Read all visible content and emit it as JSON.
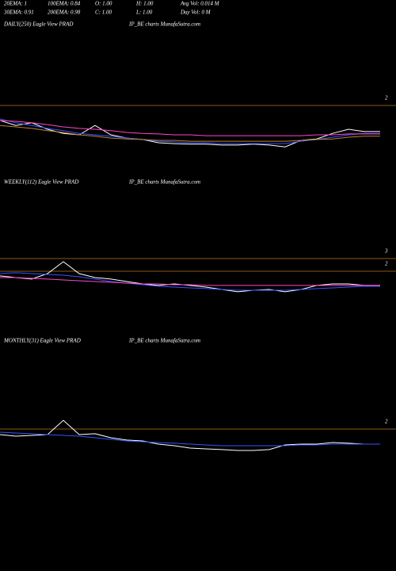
{
  "header": {
    "rows": [
      [
        "20EMA: 1",
        "100EMA: 0.84",
        "O: 1.00",
        "H: 1.00",
        "Avg Vol: 0.014  M"
      ],
      [
        "30EMA: 0.91",
        "200EMA: 0.98",
        "C: 1.00",
        "L: 1.00",
        "Day Vol: 0  M"
      ]
    ]
  },
  "chart_data": [
    {
      "type": "line",
      "label": "DAILY(250) Eagle   View  PRAD",
      "watermark": "IP_BE charts MunafaSutra.com",
      "ylim": [
        0,
        3
      ],
      "yticks": [
        2
      ],
      "level_color": "#b8741a",
      "series": [
        {
          "color": "#ffffff",
          "values": [
            1.49,
            1.32,
            1.41,
            1.19,
            1.05,
            1.0,
            1.32,
            1.0,
            0.89,
            0.84,
            0.73,
            0.7,
            0.68,
            0.68,
            0.65,
            0.65,
            0.68,
            0.65,
            0.59,
            0.81,
            0.86,
            1.05,
            1.19,
            1.11,
            1.11
          ]
        },
        {
          "color": "#3355ff",
          "values": [
            1.54,
            1.41,
            1.32,
            1.22,
            1.14,
            1.05,
            1.0,
            0.95,
            0.89,
            0.84,
            0.78,
            0.76,
            0.73,
            0.73,
            0.7,
            0.7,
            0.7,
            0.7,
            0.7,
            0.78,
            0.84,
            0.92,
            1.0,
            1.05,
            1.05
          ]
        },
        {
          "color": "#ff44cc",
          "values": [
            1.49,
            1.46,
            1.41,
            1.35,
            1.27,
            1.22,
            1.19,
            1.14,
            1.08,
            1.05,
            1.03,
            1.0,
            1.0,
            0.97,
            0.97,
            0.97,
            0.97,
            0.97,
            0.97,
            0.97,
            1.0,
            1.0,
            1.03,
            1.03,
            1.03
          ]
        },
        {
          "color": "#c08030",
          "values": [
            1.32,
            1.27,
            1.22,
            1.14,
            1.08,
            1.0,
            0.95,
            0.89,
            0.86,
            0.84,
            0.81,
            0.81,
            0.78,
            0.78,
            0.78,
            0.78,
            0.78,
            0.78,
            0.78,
            0.81,
            0.84,
            0.86,
            0.92,
            0.95,
            0.95
          ]
        }
      ]
    },
    {
      "type": "line",
      "label": "WEEKLY(112) Eagle   View  PRAD",
      "watermark": "IP_BE charts MunafaSutra.com",
      "ylim": [
        0,
        3
      ],
      "yticks": [
        3,
        2
      ],
      "level_color": "#b8741a",
      "series": [
        {
          "color": "#ffffff",
          "values": [
            1.63,
            1.5,
            1.38,
            1.81,
            2.75,
            1.81,
            1.5,
            1.38,
            1.19,
            1.0,
            0.88,
            1.0,
            0.88,
            0.75,
            0.56,
            0.38,
            0.5,
            0.56,
            0.38,
            0.56,
            0.88,
            1.0,
            1.0,
            0.88,
            0.88
          ]
        },
        {
          "color": "#3355ff",
          "values": [
            1.81,
            1.88,
            1.81,
            1.75,
            1.69,
            1.56,
            1.38,
            1.19,
            1.06,
            0.94,
            0.81,
            0.75,
            0.69,
            0.63,
            0.56,
            0.5,
            0.5,
            0.5,
            0.5,
            0.56,
            0.63,
            0.69,
            0.75,
            0.81,
            0.81
          ]
        },
        {
          "color": "#ff44cc",
          "values": [
            1.5,
            1.5,
            1.44,
            1.38,
            1.31,
            1.25,
            1.19,
            1.13,
            1.06,
            1.0,
            1.0,
            0.94,
            0.94,
            0.88,
            0.88,
            0.88,
            0.88,
            0.88,
            0.88,
            0.88,
            0.88,
            0.88,
            0.88,
            0.88,
            0.88
          ]
        }
      ]
    },
    {
      "type": "line",
      "label": "MONTHLY(31) Eagle   View  PRAD",
      "watermark": "IP_BE charts MunafaSutra.com",
      "ylim": [
        0,
        3
      ],
      "yticks": [
        2
      ],
      "level_color": "#b8741a",
      "series": [
        {
          "color": "#ffffff",
          "values": [
            1.56,
            1.44,
            1.5,
            1.56,
            2.69,
            1.56,
            1.63,
            1.31,
            1.13,
            1.06,
            0.81,
            0.69,
            0.5,
            0.44,
            0.38,
            0.31,
            0.31,
            0.38,
            0.75,
            0.81,
            0.81,
            0.94,
            0.88,
            0.81,
            0.81
          ]
        },
        {
          "color": "#3355ff",
          "values": [
            1.75,
            1.69,
            1.63,
            1.56,
            1.5,
            1.44,
            1.31,
            1.19,
            1.06,
            1.0,
            0.94,
            0.88,
            0.81,
            0.75,
            0.69,
            0.69,
            0.69,
            0.69,
            0.69,
            0.75,
            0.75,
            0.81,
            0.81,
            0.81,
            0.81
          ]
        }
      ]
    }
  ]
}
